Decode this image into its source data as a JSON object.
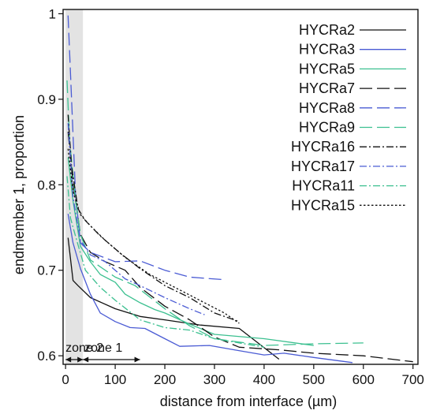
{
  "chart_data": {
    "type": "line",
    "xlabel": "distance from interface (µm)",
    "ylabel": "endmember 1, proportion",
    "xlim": [
      -5,
      710
    ],
    "ylim": [
      0.59,
      1.005
    ],
    "x_ticks": [
      0,
      100,
      200,
      300,
      400,
      500,
      600,
      700
    ],
    "y_ticks": [
      0.6,
      0.7,
      0.8,
      0.9,
      1
    ],
    "y_tick_labels": [
      "0.6",
      "0.7",
      "0.8",
      "0.9",
      "1"
    ],
    "legend_position": "top-right",
    "grid": false,
    "shaded_region": {
      "x": [
        0,
        35
      ],
      "color": "#e3e3e3"
    },
    "zones": [
      {
        "label": "zone 2",
        "x_start": 0,
        "x_end": 35
      },
      {
        "label": "zone 1",
        "x_start": 35,
        "x_end": 150
      }
    ],
    "series": [
      {
        "name": "HYCRa2",
        "color": "#111111",
        "dash": "solid",
        "x": [
          5,
          15,
          25,
          50,
          100,
          150,
          200,
          270,
          350,
          430
        ],
        "y": [
          0.738,
          0.688,
          0.682,
          0.668,
          0.655,
          0.646,
          0.642,
          0.636,
          0.632,
          0.596
        ]
      },
      {
        "name": "HYCRa3",
        "color": "#4a5bd4",
        "dash": "solid",
        "x": [
          5,
          15,
          30,
          50,
          70,
          100,
          130,
          160,
          200,
          230,
          290,
          340,
          400,
          440,
          500,
          578
        ],
        "y": [
          0.766,
          0.732,
          0.702,
          0.672,
          0.65,
          0.64,
          0.633,
          0.632,
          0.62,
          0.611,
          0.612,
          0.607,
          0.601,
          0.603,
          0.598,
          0.592
        ]
      },
      {
        "name": "HYCRa5",
        "color": "#3cc090",
        "dash": "solid",
        "x": [
          5,
          15,
          30,
          50,
          70,
          100,
          120,
          150,
          180,
          200,
          250,
          300,
          400,
          500
        ],
        "y": [
          0.832,
          0.781,
          0.728,
          0.71,
          0.695,
          0.686,
          0.672,
          0.662,
          0.654,
          0.65,
          0.637,
          0.625,
          0.62,
          0.612
        ]
      },
      {
        "name": "HYCRa7",
        "color": "#111111",
        "dash": "longdash",
        "x": [
          5,
          15,
          30,
          50,
          80,
          120,
          150,
          200,
          250,
          300,
          350,
          430,
          500,
          600,
          700
        ],
        "y": [
          0.862,
          0.802,
          0.742,
          0.721,
          0.71,
          0.7,
          0.68,
          0.658,
          0.642,
          0.622,
          0.61,
          0.607,
          0.603,
          0.6,
          0.593
        ]
      },
      {
        "name": "HYCRa8",
        "color": "#4a5bd4",
        "dash": "longdash",
        "x": [
          5,
          10,
          20,
          30,
          50,
          100,
          150,
          200,
          250,
          320
        ],
        "y": [
          0.998,
          0.93,
          0.79,
          0.732,
          0.721,
          0.71,
          0.711,
          0.7,
          0.692,
          0.689
        ]
      },
      {
        "name": "HYCRa9",
        "color": "#3cc090",
        "dash": "longdash",
        "x": [
          3,
          8,
          20,
          30,
          50,
          100,
          140,
          200,
          250,
          300,
          400,
          500,
          600
        ],
        "y": [
          0.922,
          0.852,
          0.782,
          0.742,
          0.712,
          0.692,
          0.682,
          0.655,
          0.635,
          0.62,
          0.612,
          0.614,
          0.615
        ]
      },
      {
        "name": "HYCRa16",
        "color": "#111111",
        "dash": "dashdot",
        "x": [
          5,
          12,
          25,
          40,
          70,
          110,
          150,
          200,
          250,
          300,
          350
        ],
        "y": [
          0.882,
          0.822,
          0.772,
          0.758,
          0.74,
          0.72,
          0.702,
          0.682,
          0.668,
          0.65,
          0.64
        ]
      },
      {
        "name": "HYCRa17",
        "color": "#4a5bd4",
        "dash": "dashdot",
        "x": [
          5,
          15,
          30,
          50,
          80,
          120,
          150,
          200,
          250,
          280
        ],
        "y": [
          0.872,
          0.785,
          0.735,
          0.718,
          0.71,
          0.69,
          0.682,
          0.668,
          0.655,
          0.648
        ]
      },
      {
        "name": "HYCRa11",
        "color": "#3cc090",
        "dash": "dashdot",
        "x": [
          3,
          10,
          20,
          40,
          70,
          100,
          150,
          200,
          250,
          300,
          400
        ],
        "y": [
          0.81,
          0.761,
          0.74,
          0.7,
          0.68,
          0.665,
          0.642,
          0.633,
          0.63,
          0.62,
          0.61
        ]
      },
      {
        "name": "HYCRa15",
        "color": "#111111",
        "dash": "dotted",
        "x": [
          5,
          15,
          30,
          50,
          80,
          120,
          170,
          220,
          270,
          320,
          350
        ],
        "y": [
          0.842,
          0.792,
          0.765,
          0.752,
          0.735,
          0.715,
          0.695,
          0.68,
          0.665,
          0.65,
          0.638
        ]
      }
    ]
  }
}
